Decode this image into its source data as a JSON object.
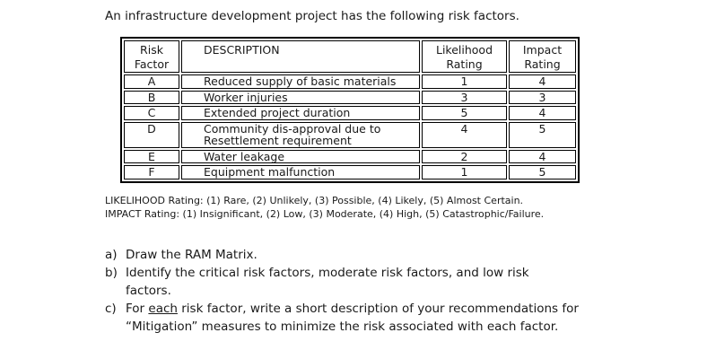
{
  "page": {
    "title": "An infrastructure development project has the following risk factors."
  },
  "table": {
    "headers": {
      "factor": {
        "line1": "Risk",
        "line2": "Factor"
      },
      "description": {
        "line1": "DESCRIPTION",
        "line2": ""
      },
      "likelihood": {
        "line1": "Likelihood",
        "line2": "Rating"
      },
      "impact": {
        "line1": "Impact",
        "line2": "Rating"
      }
    },
    "rows": [
      {
        "factor": "A",
        "description": "Reduced supply of basic materials",
        "likelihood": "1",
        "impact": "4"
      },
      {
        "factor": "B",
        "description": "Worker injuries",
        "likelihood": "3",
        "impact": "3"
      },
      {
        "factor": "C",
        "description": "Extended project duration",
        "likelihood": "5",
        "impact": "4"
      },
      {
        "factor": "D",
        "description": "Community dis-approval due to Resettlement requirement",
        "likelihood": "4",
        "impact": "5"
      },
      {
        "factor": "E",
        "description": "Water leakage",
        "likelihood": "2",
        "impact": "4"
      },
      {
        "factor": "F",
        "description": "Equipment malfunction",
        "likelihood": "1",
        "impact": "5"
      }
    ]
  },
  "notes": {
    "likelihood": "LIKELIHOOD Rating: (1) Rare, (2) Unlikely, (3) Possible, (4) Likely, (5) Almost Certain.",
    "impact": "IMPACT Rating: (1) Insignificant, (2) Low, (3) Moderate, (4) High, (5) Catastrophic/Failure."
  },
  "questions": {
    "a": {
      "label": "a)",
      "line1": "Draw the RAM Matrix."
    },
    "b": {
      "label": "b)",
      "line1": "Identify the critical risk factors, moderate risk factors, and low risk",
      "line2": "factors."
    },
    "c": {
      "label": "c)",
      "line1_prefix": "For ",
      "line1_underlined": "each",
      "line1_rest": " risk factor, write a short description of your recommendations for",
      "line2": "“Mitigation” measures to minimize the risk associated with each factor."
    }
  }
}
